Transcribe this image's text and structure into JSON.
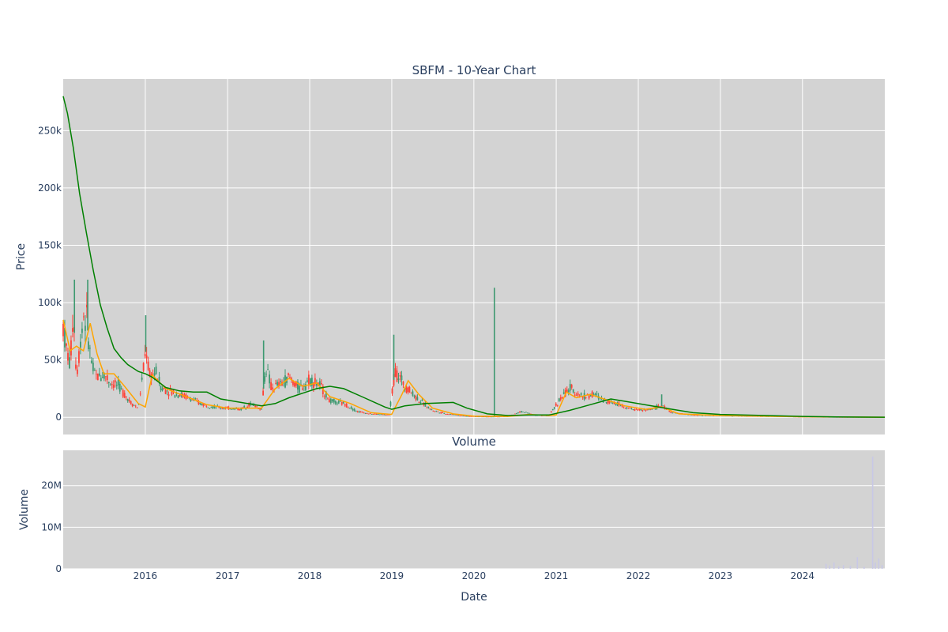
{
  "chart_data": {
    "type": "candlestick",
    "title": "SBFM - 10-Year Chart",
    "xlabel": "Date",
    "x_ticks": [
      "2016",
      "2017",
      "2018",
      "2019",
      "2020",
      "2021",
      "2022",
      "2023",
      "2024"
    ],
    "x_range": [
      "2015-01-01",
      "2025-01-01"
    ],
    "colors": {
      "background": "#d3d3d3",
      "grid": "#ffffff",
      "up": "#3d9970",
      "down": "#ff4136",
      "ma_fast": "#ffa500",
      "ma_slow": "#008000",
      "volume": "#c8c8e6"
    },
    "price_panel": {
      "ylabel": "Price",
      "ylim": [
        -15000,
        295000
      ],
      "y_ticks": [
        0,
        50000,
        100000,
        150000,
        200000,
        250000
      ],
      "y_tick_labels": [
        "0",
        "50k",
        "100k",
        "150k",
        "200k",
        "250k"
      ],
      "grid": true,
      "close_path": [
        [
          "2015-01-01",
          80000
        ],
        [
          "2015-01-15",
          60000
        ],
        [
          "2015-02-01",
          45000
        ],
        [
          "2015-02-15",
          95000
        ],
        [
          "2015-03-01",
          35000
        ],
        [
          "2015-03-15",
          60000
        ],
        [
          "2015-04-01",
          90000
        ],
        [
          "2015-04-15",
          85000
        ],
        [
          "2015-05-01",
          55000
        ],
        [
          "2015-05-15",
          40000
        ],
        [
          "2015-06-01",
          35000
        ],
        [
          "2015-07-01",
          38000
        ],
        [
          "2015-08-01",
          30000
        ],
        [
          "2015-09-01",
          28000
        ],
        [
          "2015-10-01",
          20000
        ],
        [
          "2015-11-01",
          12000
        ],
        [
          "2015-12-01",
          8000
        ],
        [
          "2016-01-05",
          60000
        ],
        [
          "2016-01-20",
          35000
        ],
        [
          "2016-02-15",
          40000
        ],
        [
          "2016-03-15",
          25000
        ],
        [
          "2016-05-01",
          22000
        ],
        [
          "2016-07-01",
          18000
        ],
        [
          "2016-09-01",
          12000
        ],
        [
          "2016-11-01",
          9000
        ],
        [
          "2017-01-01",
          8000
        ],
        [
          "2017-03-01",
          7000
        ],
        [
          "2017-04-15",
          12000
        ],
        [
          "2017-06-01",
          7000
        ],
        [
          "2017-06-20",
          45000
        ],
        [
          "2017-07-15",
          25000
        ],
        [
          "2017-09-01",
          30000
        ],
        [
          "2017-10-01",
          35000
        ],
        [
          "2017-11-15",
          25000
        ],
        [
          "2018-01-01",
          33000
        ],
        [
          "2018-02-15",
          28000
        ],
        [
          "2018-04-01",
          14000
        ],
        [
          "2018-06-01",
          12000
        ],
        [
          "2018-08-01",
          5000
        ],
        [
          "2018-10-01",
          3000
        ],
        [
          "2018-12-20",
          2000
        ],
        [
          "2019-01-15",
          40000
        ],
        [
          "2019-03-01",
          28000
        ],
        [
          "2019-05-01",
          15000
        ],
        [
          "2019-07-01",
          6000
        ],
        [
          "2019-09-01",
          3000
        ],
        [
          "2019-12-01",
          1000
        ],
        [
          "2020-03-01",
          500
        ],
        [
          "2020-06-01",
          800
        ],
        [
          "2020-08-01",
          5000
        ],
        [
          "2020-10-01",
          2000
        ],
        [
          "2020-12-01",
          1500
        ],
        [
          "2021-01-15",
          15000
        ],
        [
          "2021-03-01",
          25000
        ],
        [
          "2021-05-01",
          18000
        ],
        [
          "2021-06-15",
          20000
        ],
        [
          "2021-08-01",
          15000
        ],
        [
          "2021-10-01",
          12000
        ],
        [
          "2021-12-01",
          7000
        ],
        [
          "2022-02-01",
          6000
        ],
        [
          "2022-04-15",
          10000
        ],
        [
          "2022-06-01",
          4000
        ],
        [
          "2022-09-01",
          2000
        ],
        [
          "2023-01-01",
          1500
        ],
        [
          "2023-06-01",
          1000
        ],
        [
          "2024-01-01",
          500
        ],
        [
          "2024-06-01",
          200
        ],
        [
          "2025-01-01",
          100
        ]
      ],
      "spikes": [
        [
          "2015-02-20",
          120000
        ],
        [
          "2015-04-20",
          120000
        ],
        [
          "2016-01-03",
          89000
        ],
        [
          "2017-06-10",
          67000
        ],
        [
          "2019-01-10",
          72000
        ],
        [
          "2020-04-01",
          113000
        ],
        [
          "2022-04-15",
          20000
        ]
      ],
      "ma_fast": [
        [
          "2015-01-01",
          85000
        ],
        [
          "2015-02-01",
          58000
        ],
        [
          "2015-03-01",
          62000
        ],
        [
          "2015-04-01",
          58000
        ],
        [
          "2015-05-01",
          82000
        ],
        [
          "2015-06-01",
          55000
        ],
        [
          "2015-07-01",
          38000
        ],
        [
          "2015-08-15",
          38000
        ],
        [
          "2015-10-01",
          27000
        ],
        [
          "2015-12-01",
          12000
        ],
        [
          "2016-01-01",
          9000
        ],
        [
          "2016-02-01",
          37000
        ],
        [
          "2016-04-01",
          25000
        ],
        [
          "2016-07-01",
          18000
        ],
        [
          "2016-10-01",
          11000
        ],
        [
          "2017-01-01",
          8000
        ],
        [
          "2017-04-01",
          8000
        ],
        [
          "2017-06-01",
          8000
        ],
        [
          "2017-08-01",
          25000
        ],
        [
          "2017-10-01",
          34000
        ],
        [
          "2017-12-01",
          27000
        ],
        [
          "2018-02-01",
          30000
        ],
        [
          "2018-04-01",
          18000
        ],
        [
          "2018-07-01",
          12000
        ],
        [
          "2018-10-01",
          4000
        ],
        [
          "2018-12-31",
          2500
        ],
        [
          "2019-02-15",
          20000
        ],
        [
          "2019-03-15",
          32000
        ],
        [
          "2019-05-01",
          20000
        ],
        [
          "2019-07-01",
          8000
        ],
        [
          "2019-10-01",
          3000
        ],
        [
          "2020-01-01",
          1000
        ],
        [
          "2020-06-01",
          800
        ],
        [
          "2020-09-01",
          2500
        ],
        [
          "2020-12-01",
          1500
        ],
        [
          "2021-01-01",
          2000
        ],
        [
          "2021-02-15",
          22000
        ],
        [
          "2021-04-01",
          17000
        ],
        [
          "2021-06-01",
          20000
        ],
        [
          "2021-08-01",
          16000
        ],
        [
          "2021-11-01",
          10000
        ],
        [
          "2022-02-01",
          7000
        ],
        [
          "2022-04-15",
          9000
        ],
        [
          "2022-07-01",
          3000
        ],
        [
          "2023-01-01",
          1500
        ],
        [
          "2024-01-01",
          500
        ],
        [
          "2025-01-01",
          100
        ]
      ],
      "ma_slow": [
        [
          "2015-01-01",
          280000
        ],
        [
          "2015-01-20",
          265000
        ],
        [
          "2015-02-15",
          235000
        ],
        [
          "2015-03-15",
          195000
        ],
        [
          "2015-04-15",
          160000
        ],
        [
          "2015-05-15",
          128000
        ],
        [
          "2015-06-15",
          98000
        ],
        [
          "2015-07-15",
          78000
        ],
        [
          "2015-08-15",
          60000
        ],
        [
          "2015-09-15",
          52000
        ],
        [
          "2015-10-15",
          46000
        ],
        [
          "2015-12-01",
          40000
        ],
        [
          "2016-01-01",
          38000
        ],
        [
          "2016-02-01",
          35000
        ],
        [
          "2016-04-01",
          26000
        ],
        [
          "2016-06-01",
          23000
        ],
        [
          "2016-08-01",
          22000
        ],
        [
          "2016-10-01",
          22000
        ],
        [
          "2016-12-01",
          16000
        ],
        [
          "2017-03-01",
          13000
        ],
        [
          "2017-06-01",
          10000
        ],
        [
          "2017-08-01",
          12000
        ],
        [
          "2017-10-01",
          17000
        ],
        [
          "2017-12-01",
          21000
        ],
        [
          "2018-02-01",
          25000
        ],
        [
          "2018-04-01",
          27000
        ],
        [
          "2018-06-01",
          25000
        ],
        [
          "2018-09-01",
          17000
        ],
        [
          "2018-12-01",
          9000
        ],
        [
          "2019-01-01",
          7000
        ],
        [
          "2019-03-01",
          10000
        ],
        [
          "2019-06-01",
          12000
        ],
        [
          "2019-10-01",
          13000
        ],
        [
          "2019-12-01",
          8000
        ],
        [
          "2020-03-01",
          3000
        ],
        [
          "2020-06-01",
          1500
        ],
        [
          "2020-09-01",
          2000
        ],
        [
          "2020-12-01",
          2000
        ],
        [
          "2021-03-01",
          6000
        ],
        [
          "2021-06-01",
          11000
        ],
        [
          "2021-09-01",
          16000
        ],
        [
          "2021-11-01",
          14000
        ],
        [
          "2022-03-01",
          10000
        ],
        [
          "2022-06-01",
          7000
        ],
        [
          "2022-09-01",
          4000
        ],
        [
          "2023-01-01",
          2500
        ],
        [
          "2023-06-01",
          1800
        ],
        [
          "2024-01-01",
          800
        ],
        [
          "2024-06-01",
          300
        ],
        [
          "2025-01-01",
          100
        ]
      ]
    },
    "volume_panel": {
      "subtitle": "Volume",
      "ylabel": "Volume",
      "ylim": [
        0,
        28500000
      ],
      "y_ticks": [
        0,
        10000000,
        20000000
      ],
      "y_tick_labels": [
        "0",
        "10M",
        "20M"
      ],
      "grid": true,
      "bars": [
        [
          "2024-04-15",
          1200000
        ],
        [
          "2024-05-01",
          800000
        ],
        [
          "2024-05-20",
          1500000
        ],
        [
          "2024-06-10",
          600000
        ],
        [
          "2024-07-01",
          900000
        ],
        [
          "2024-08-01",
          700000
        ],
        [
          "2024-09-01",
          2800000
        ],
        [
          "2024-10-01",
          500000
        ],
        [
          "2024-11-08",
          27000000
        ],
        [
          "2024-11-20",
          1500000
        ],
        [
          "2024-12-05",
          2500000
        ],
        [
          "2024-12-20",
          900000
        ]
      ]
    }
  }
}
